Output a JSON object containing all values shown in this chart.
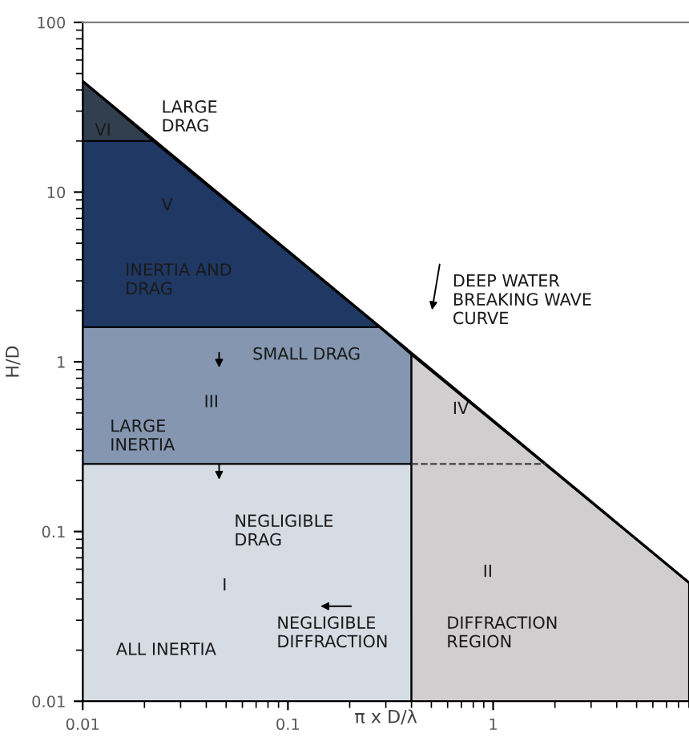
{
  "chart_data": {
    "type": "area",
    "xlabel": "π x D/λ",
    "ylabel": "H/D",
    "log": "xy",
    "grid": false,
    "legend": false,
    "xlim": [
      0.01,
      9
    ],
    "ylim": [
      0.01,
      100
    ],
    "xticks": [
      0.01,
      0.1,
      1
    ],
    "yticks": [
      0.01,
      0.1,
      1,
      10,
      100
    ],
    "series": [
      {
        "color": "#323f4f",
        "x": [
          0.01,
          0.022
        ],
        "values": [
          45,
          20
        ]
      },
      {
        "color": "#1f3864",
        "x": [
          0.01,
          0.022,
          0.28
        ],
        "values": [
          20,
          20,
          1.6
        ]
      },
      {
        "color": "#8496b0",
        "x": [
          0.01,
          0.28,
          0.4
        ],
        "values": [
          1.6,
          1.6,
          1.1
        ]
      },
      {
        "color": "#d6dce4",
        "x": [
          0.01,
          0.4
        ],
        "values": [
          0.25,
          0.25
        ]
      },
      {
        "color": "#d0cece",
        "x": [
          0.4,
          9
        ],
        "values": [
          1.1,
          0.05
        ]
      },
      {
        "type": "line",
        "color": "#000000",
        "x": [
          0.01,
          9
        ],
        "values": [
          45,
          0.05
        ],
        "line_style": "solid"
      },
      {
        "type": "line",
        "color": "#404040",
        "x": [
          0.4,
          1.8
        ],
        "values": [
          0.25,
          0.25
        ],
        "line_style": "dashed"
      }
    ],
    "annotations": [
      "LARGE\nDRAG",
      "VI",
      "V",
      "INERTIA AND\nDRAG",
      "DEEP WATER\nBREAKING WAVE\nCURVE",
      "SMALL DRAG",
      "III",
      "LARGE\nINERTIA",
      "IV",
      "NEGLIGIBLE\nDRAG",
      "I",
      "NEGLIGIBLE\nDIFFRACTION",
      "ALL INERTIA",
      "II",
      "DIFFRACTION\nREGION"
    ]
  }
}
